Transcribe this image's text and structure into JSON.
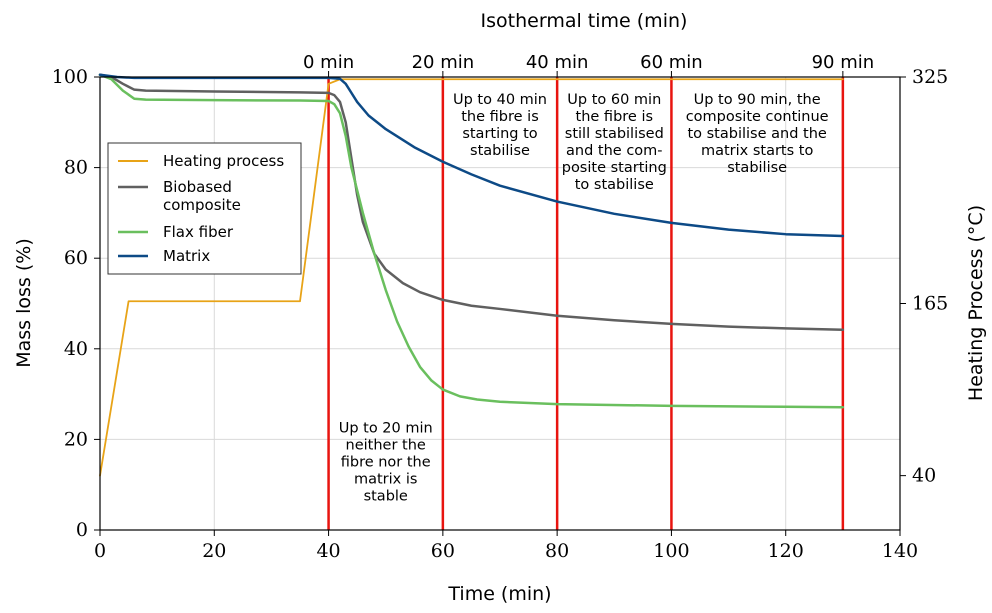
{
  "chart_data": {
    "type": "line",
    "title": "",
    "xlabel": "Time (min)",
    "ylabel": "Mass loss (%)",
    "y2label": "Heating Process (°C)",
    "top_axis_label": "Isothermal time (min)",
    "xlim": [
      0,
      140
    ],
    "ylim": [
      0,
      100
    ],
    "x_ticks": [
      0,
      20,
      40,
      60,
      80,
      100,
      120,
      140
    ],
    "y_ticks": [
      0,
      20,
      40,
      60,
      80,
      100
    ],
    "y2_ticks": [
      {
        "label": "325",
        "at_y": 100
      },
      {
        "label": "165",
        "at_y": 50
      },
      {
        "label": "40",
        "at_y": 12
      }
    ],
    "top_ticks": [
      {
        "label": "0 min",
        "x": 40
      },
      {
        "label": "20 min",
        "x": 60
      },
      {
        "label": "40 min",
        "x": 80
      },
      {
        "label": "60 min",
        "x": 100
      },
      {
        "label": "90 min",
        "x": 130
      }
    ],
    "grid": true,
    "legend_position": "center-left",
    "vlines": [
      40,
      60,
      80,
      100,
      130
    ],
    "vline_color": "#e8140f",
    "series": [
      {
        "name": "Heating process",
        "color": "#e8a317",
        "points": [
          [
            0,
            12
          ],
          [
            5,
            50.5
          ],
          [
            35,
            50.5
          ],
          [
            40,
            98.5
          ],
          [
            42,
            99.5
          ],
          [
            130,
            99.5
          ]
        ]
      },
      {
        "name": "Biobased composite",
        "color": "#606060",
        "points": [
          [
            0,
            100.5
          ],
          [
            2,
            100
          ],
          [
            4,
            98.5
          ],
          [
            6,
            97.2
          ],
          [
            8,
            97
          ],
          [
            20,
            96.8
          ],
          [
            35,
            96.6
          ],
          [
            40,
            96.5
          ],
          [
            41,
            96
          ],
          [
            42,
            94.5
          ],
          [
            43,
            90
          ],
          [
            44,
            82
          ],
          [
            45,
            74
          ],
          [
            46,
            68
          ],
          [
            48,
            61
          ],
          [
            50,
            57.5
          ],
          [
            53,
            54.5
          ],
          [
            56,
            52.5
          ],
          [
            60,
            50.8
          ],
          [
            65,
            49.5
          ],
          [
            70,
            48.8
          ],
          [
            80,
            47.3
          ],
          [
            90,
            46.3
          ],
          [
            100,
            45.5
          ],
          [
            110,
            44.9
          ],
          [
            120,
            44.5
          ],
          [
            130,
            44.2
          ]
        ]
      },
      {
        "name": "Flax fiber",
        "color": "#6abf5e",
        "points": [
          [
            0,
            100.5
          ],
          [
            2,
            99.5
          ],
          [
            4,
            97
          ],
          [
            6,
            95.2
          ],
          [
            8,
            95
          ],
          [
            20,
            94.9
          ],
          [
            35,
            94.8
          ],
          [
            40,
            94.7
          ],
          [
            41,
            94
          ],
          [
            42,
            92
          ],
          [
            43,
            87
          ],
          [
            44,
            80
          ],
          [
            46,
            70
          ],
          [
            48,
            61
          ],
          [
            50,
            53
          ],
          [
            52,
            46
          ],
          [
            54,
            40.5
          ],
          [
            56,
            36
          ],
          [
            58,
            33
          ],
          [
            60,
            31
          ],
          [
            63,
            29.5
          ],
          [
            66,
            28.8
          ],
          [
            70,
            28.3
          ],
          [
            80,
            27.8
          ],
          [
            100,
            27.4
          ],
          [
            120,
            27.2
          ],
          [
            130,
            27.1
          ]
        ]
      },
      {
        "name": "Matrix",
        "color": "#0d4a86",
        "points": [
          [
            0,
            100.5
          ],
          [
            3,
            100
          ],
          [
            6,
            99.8
          ],
          [
            20,
            99.8
          ],
          [
            40,
            99.8
          ],
          [
            42,
            99.6
          ],
          [
            43,
            98.5
          ],
          [
            44,
            96.5
          ],
          [
            45,
            94.5
          ],
          [
            47,
            91.5
          ],
          [
            50,
            88.5
          ],
          [
            55,
            84.5
          ],
          [
            60,
            81.3
          ],
          [
            65,
            78.5
          ],
          [
            70,
            76
          ],
          [
            80,
            72.5
          ],
          [
            90,
            69.8
          ],
          [
            100,
            67.8
          ],
          [
            110,
            66.3
          ],
          [
            120,
            65.3
          ],
          [
            130,
            64.9
          ]
        ]
      }
    ],
    "annotations": [
      {
        "lines": [
          "Up to 40 min",
          "the fibre is",
          "starting to",
          "stabilise"
        ],
        "x": 70,
        "y": 94
      },
      {
        "lines": [
          "Up to 60 min",
          "the fibre is",
          "still stabilised",
          "and the com-",
          "posite starting",
          "to stabilise"
        ],
        "x": 90,
        "y": 94
      },
      {
        "lines": [
          "Up to 90 min, the",
          "composite continue",
          "to stabilise and the",
          "matrix starts to",
          "stabilise"
        ],
        "x": 115,
        "y": 94
      },
      {
        "lines": [
          "Up to 20 min",
          "neither the",
          "fibre nor the",
          "matrix is",
          "stable"
        ],
        "x": 50,
        "y": 21.5
      }
    ]
  }
}
